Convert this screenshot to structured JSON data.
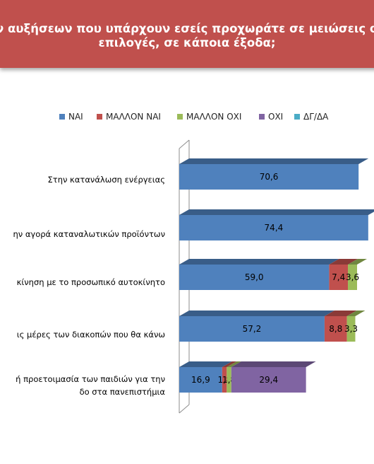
{
  "title": {
    "line1": "ν αυξήσεων που υπάρχουν εσείς προχωράτε σε μειώσεις σε κάποι",
    "line2": "επιλογές, σε κάποια έξοδα;"
  },
  "colors": {
    "title_bg": "#c0504d",
    "nai": "#4f81bd",
    "mallon_nai": "#c0504d",
    "mallon_oxi": "#9bbb59",
    "oxi": "#8064a2",
    "dg_da": "#4bacc6"
  },
  "chart_data": {
    "type": "bar",
    "orientation": "horizontal",
    "stacked": true,
    "categories": [
      "Στην κατανάλωση ενέργειας",
      "ην αγορά καταναλωτικών προϊόντων",
      "κίνηση με το προσωπικό αυτοκίνητο",
      "ις μέρες των διακοπών που θα κάνω",
      "ή προετοιμασία των παιδιών για την\nδο στα πανεπιστήμια"
    ],
    "series": [
      {
        "name": "ΝΑΙ",
        "values": [
          70.6,
          74.4,
          59.0,
          57.2,
          16.9
        ],
        "labels": [
          "70,6",
          "74,4",
          "59,0",
          "57,2",
          "16,9"
        ]
      },
      {
        "name": "ΜΑΛΛΟΝ ΝΑΙ",
        "values": [
          null,
          null,
          7.4,
          8.8,
          1.8
        ],
        "labels": [
          "",
          "",
          "7,4",
          "8,8",
          "1,8"
        ]
      },
      {
        "name": "ΜΑΛΛΟΝ ΟΧΙ",
        "values": [
          null,
          null,
          3.6,
          3.3,
          1.8
        ],
        "labels": [
          "",
          "",
          "3,6",
          "3,3",
          "1,8"
        ]
      },
      {
        "name": "ΟΧΙ",
        "values": [
          null,
          null,
          null,
          null,
          29.4
        ],
        "labels": [
          "",
          "",
          "",
          "",
          "29,4"
        ]
      },
      {
        "name": "ΔΓ/ΔΑ",
        "values": [
          null,
          null,
          null,
          null,
          null
        ],
        "labels": [
          "",
          "",
          "",
          "",
          ""
        ]
      }
    ],
    "xlim": [
      0,
      100
    ],
    "legend_position": "top",
    "grid": false
  }
}
